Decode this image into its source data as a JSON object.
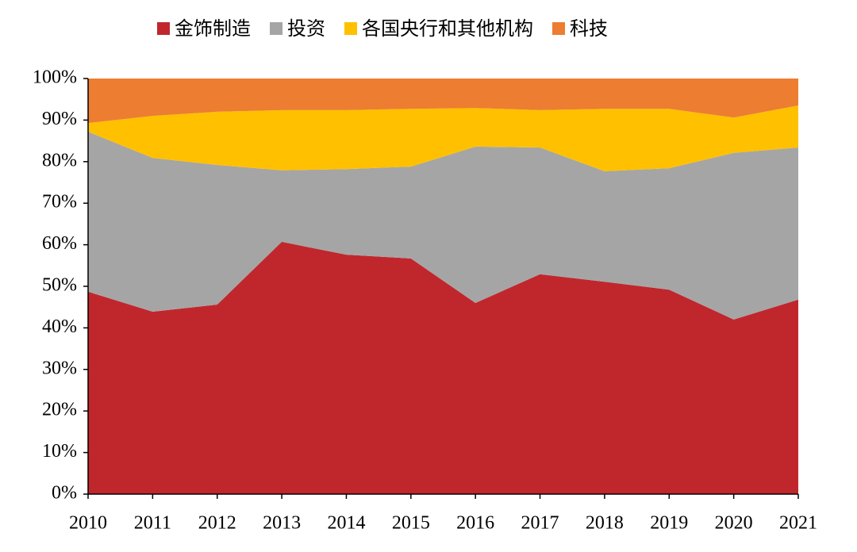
{
  "chart_data": {
    "type": "stacked-area",
    "categories": [
      "2010",
      "2011",
      "2012",
      "2013",
      "2014",
      "2015",
      "2016",
      "2017",
      "2018",
      "2019",
      "2020",
      "2021"
    ],
    "series": [
      {
        "name": "金饰制造",
        "color": "#c0272d",
        "values": [
          48.7,
          43.9,
          45.6,
          60.7,
          57.6,
          56.7,
          46.0,
          52.9,
          51.1,
          49.2,
          42.0,
          46.8
        ]
      },
      {
        "name": "投资",
        "color": "#a5a5a5",
        "values": [
          38.5,
          37.0,
          33.6,
          17.2,
          20.6,
          22.1,
          37.6,
          30.5,
          26.6,
          29.2,
          40.1,
          36.6
        ]
      },
      {
        "name": "各国央行和其他机构",
        "color": "#ffc000",
        "values": [
          2.1,
          10.1,
          12.8,
          14.5,
          14.2,
          13.9,
          9.3,
          9.0,
          15.0,
          14.3,
          8.5,
          10.1
        ]
      },
      {
        "name": "科技",
        "color": "#ed7d31",
        "values": [
          10.7,
          9.0,
          8.0,
          7.6,
          7.6,
          7.3,
          7.1,
          7.6,
          7.3,
          7.3,
          9.4,
          6.5
        ]
      }
    ],
    "ylim": [
      0,
      100
    ],
    "yticks": [
      {
        "value": 0,
        "label": "0%"
      },
      {
        "value": 10,
        "label": "10%"
      },
      {
        "value": 20,
        "label": "20%"
      },
      {
        "value": 30,
        "label": "30%"
      },
      {
        "value": 40,
        "label": "40%"
      },
      {
        "value": 50,
        "label": "50%"
      },
      {
        "value": 60,
        "label": "60%"
      },
      {
        "value": 70,
        "label": "70%"
      },
      {
        "value": 80,
        "label": "80%"
      },
      {
        "value": 90,
        "label": "90%"
      },
      {
        "value": 100,
        "label": "100%"
      }
    ],
    "legend": "top"
  }
}
